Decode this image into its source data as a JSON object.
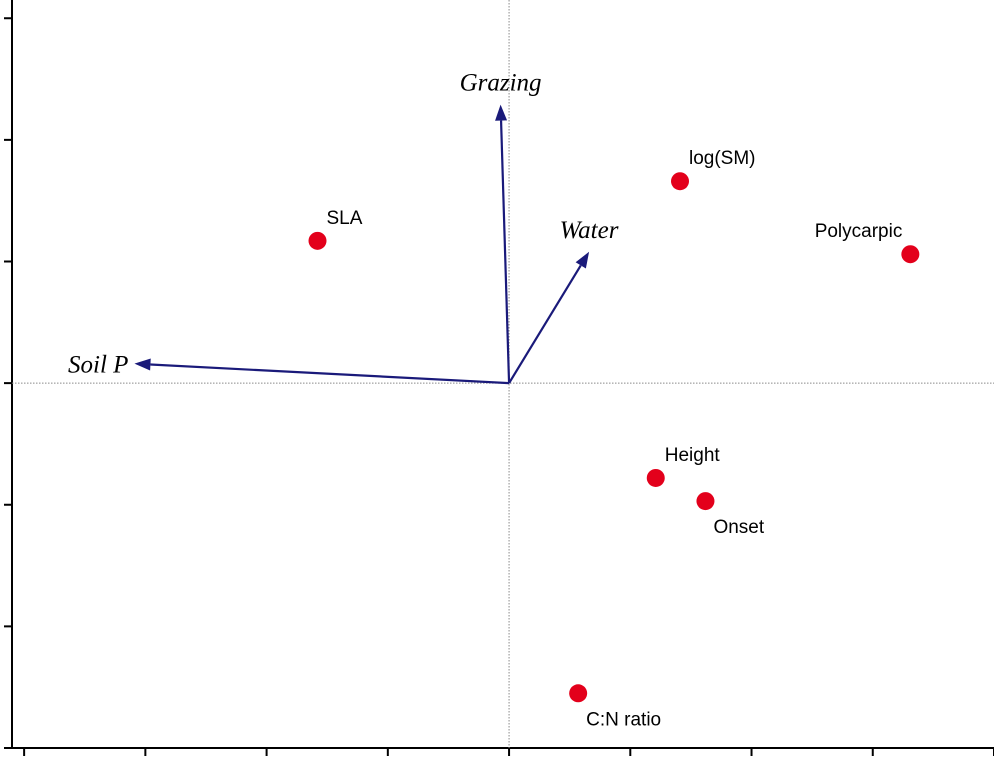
{
  "chart_data": {
    "type": "scatter",
    "title": "",
    "xlabel": "",
    "ylabel": "",
    "xlim": [
      -4.1,
      4.0
    ],
    "ylim": [
      -3.0,
      3.15
    ],
    "x_ticks": [
      -4,
      -3,
      -2,
      -1,
      0,
      1,
      2,
      3,
      4
    ],
    "y_ticks": [
      -3,
      -2,
      -1,
      0,
      1,
      2,
      3
    ],
    "grid": false,
    "zero_lines": true,
    "colors": {
      "points": "#e3001b",
      "arrows": "#1a1a7a",
      "axes": "#000000",
      "zero_lines": "#8a8a8a"
    },
    "points": [
      {
        "label": "SLA",
        "x": -1.58,
        "y": 1.17,
        "label_pos": "top-right"
      },
      {
        "label": "log(SM)",
        "x": 1.41,
        "y": 1.66,
        "label_pos": "top-right"
      },
      {
        "label": "Polycarpic",
        "x": 3.31,
        "y": 1.06,
        "label_pos": "top-left"
      },
      {
        "label": "Height",
        "x": 1.21,
        "y": -0.78,
        "label_pos": "top-right"
      },
      {
        "label": "Onset",
        "x": 1.62,
        "y": -0.97,
        "label_pos": "bottom-right"
      },
      {
        "label": "C:N ratio",
        "x": 0.57,
        "y": -2.55,
        "label_pos": "bottom-right"
      }
    ],
    "arrows": [
      {
        "label": "Grazing",
        "x": -0.07,
        "y": 2.29,
        "label_pos": "top"
      },
      {
        "label": "Water",
        "x": 0.66,
        "y": 1.08,
        "label_pos": "top"
      },
      {
        "label": "Soil P",
        "x": -3.09,
        "y": 0.16,
        "label_pos": "left"
      }
    ]
  }
}
